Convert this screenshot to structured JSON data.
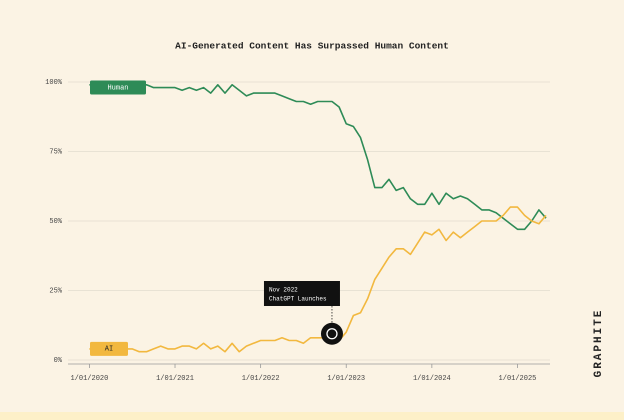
{
  "chart_data": {
    "type": "line",
    "title": "AI-Generated Content Has Surpassed Human Content",
    "brand": "GRAPHITE",
    "x": [
      "2020-01",
      "2020-02",
      "2020-03",
      "2020-04",
      "2020-05",
      "2020-06",
      "2020-07",
      "2020-08",
      "2020-09",
      "2020-10",
      "2020-11",
      "2020-12",
      "2021-01",
      "2021-02",
      "2021-03",
      "2021-04",
      "2021-05",
      "2021-06",
      "2021-07",
      "2021-08",
      "2021-09",
      "2021-10",
      "2021-11",
      "2021-12",
      "2022-01",
      "2022-02",
      "2022-03",
      "2022-04",
      "2022-05",
      "2022-06",
      "2022-07",
      "2022-08",
      "2022-09",
      "2022-10",
      "2022-11",
      "2022-12",
      "2023-01",
      "2023-02",
      "2023-03",
      "2023-04",
      "2023-05",
      "2023-06",
      "2023-07",
      "2023-08",
      "2023-09",
      "2023-10",
      "2023-11",
      "2023-12",
      "2024-01",
      "2024-02",
      "2024-03",
      "2024-04",
      "2024-05",
      "2024-06",
      "2024-07",
      "2024-08",
      "2024-09",
      "2024-10",
      "2024-11",
      "2024-12",
      "2025-01",
      "2025-02",
      "2025-03",
      "2025-04",
      "2025-05"
    ],
    "series": [
      {
        "name": "Human",
        "color": "#2e8b57",
        "values": [
          99,
          99,
          98,
          98,
          98,
          98,
          98,
          98,
          99,
          98,
          98,
          98,
          98,
          97,
          98,
          97,
          98,
          96,
          99,
          96,
          99,
          97,
          95,
          96,
          96,
          96,
          96,
          95,
          94,
          93,
          93,
          92,
          93,
          93,
          93,
          91,
          85,
          84,
          80,
          72,
          62,
          62,
          65,
          61,
          62,
          58,
          56,
          56,
          60,
          56,
          60,
          58,
          59,
          58,
          56,
          54,
          54,
          53,
          51,
          49,
          47,
          47,
          50,
          54,
          51
        ]
      },
      {
        "name": "AI",
        "color": "#f2b83f",
        "values": [
          4,
          4,
          4,
          4,
          4,
          4,
          4,
          3,
          3,
          4,
          5,
          4,
          4,
          5,
          5,
          4,
          6,
          4,
          5,
          3,
          6,
          3,
          5,
          6,
          7,
          7,
          7,
          8,
          7,
          7,
          6,
          8,
          8,
          8,
          8,
          7,
          10,
          16,
          17,
          22,
          29,
          33,
          37,
          40,
          40,
          38,
          42,
          46,
          45,
          47,
          43,
          46,
          44,
          46,
          48,
          50,
          50,
          50,
          52,
          55,
          55,
          52,
          50,
          49,
          52
        ]
      }
    ],
    "xlim": [
      "2019-10",
      "2025-05"
    ],
    "xticks": [
      {
        "value": "2020-01",
        "label": "1/01/2020"
      },
      {
        "value": "2021-01",
        "label": "1/01/2021"
      },
      {
        "value": "2022-01",
        "label": "1/01/2022"
      },
      {
        "value": "2023-01",
        "label": "1/01/2023"
      },
      {
        "value": "2024-01",
        "label": "1/01/2024"
      },
      {
        "value": "2025-01",
        "label": "1/01/2025"
      }
    ],
    "ylim": [
      0,
      100
    ],
    "yticks": [
      {
        "value": 0,
        "label": "0%"
      },
      {
        "value": 25,
        "label": "25%"
      },
      {
        "value": 50,
        "label": "50%"
      },
      {
        "value": 75,
        "label": "75%"
      },
      {
        "value": 100,
        "label": "100%"
      }
    ],
    "grid": true,
    "annotation": {
      "x": "2022-11",
      "lines": [
        "Nov 2022",
        "ChatGPT Launches"
      ]
    }
  }
}
